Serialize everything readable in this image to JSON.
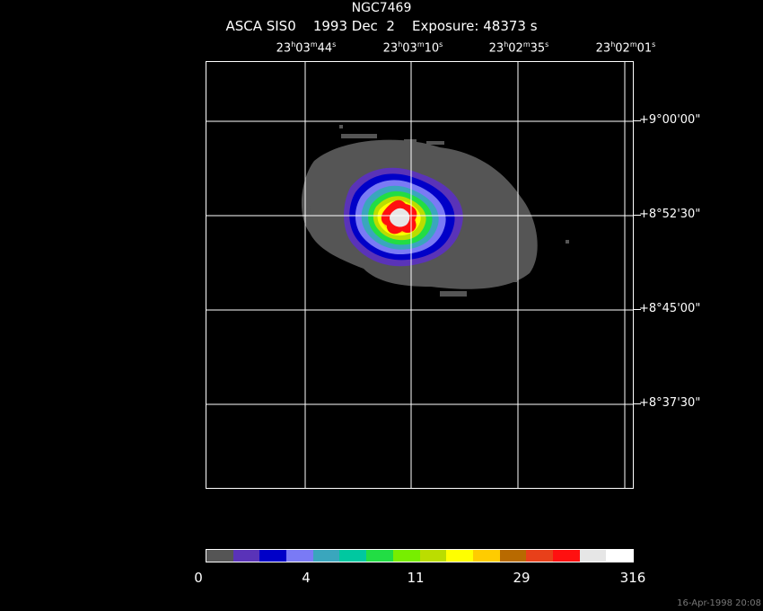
{
  "header": {
    "object": "NGC7469",
    "instrument": "ASCA SIS0",
    "date": "1993 Dec  2",
    "exposure": "Exposure: 48373 s"
  },
  "ra_labels": [
    {
      "h": "23",
      "m": "03",
      "s": "44"
    },
    {
      "h": "23",
      "m": "03",
      "s": "10"
    },
    {
      "h": "23",
      "m": "02",
      "s": "35"
    },
    {
      "h": "23",
      "m": "02",
      "s": "01"
    }
  ],
  "dec_labels": [
    "+9°00'00\"",
    "+8°52'30\"",
    "+8°45'00\"",
    "+8°37'30\""
  ],
  "colorbar": {
    "colors": [
      "#555555",
      "#5a33b8",
      "#0000c8",
      "#7a7af5",
      "#3aa6bd",
      "#00c8a0",
      "#22dd44",
      "#77ee00",
      "#bbdd00",
      "#ffff00",
      "#ffcc00",
      "#b86a00",
      "#e8401a",
      "#ff1010",
      "#e6e6e6",
      "#ffffff"
    ],
    "labels": [
      "0",
      "4",
      "11",
      "29",
      "316"
    ]
  },
  "footer": {
    "timestamp": "16-Apr-1998 20:08"
  }
}
